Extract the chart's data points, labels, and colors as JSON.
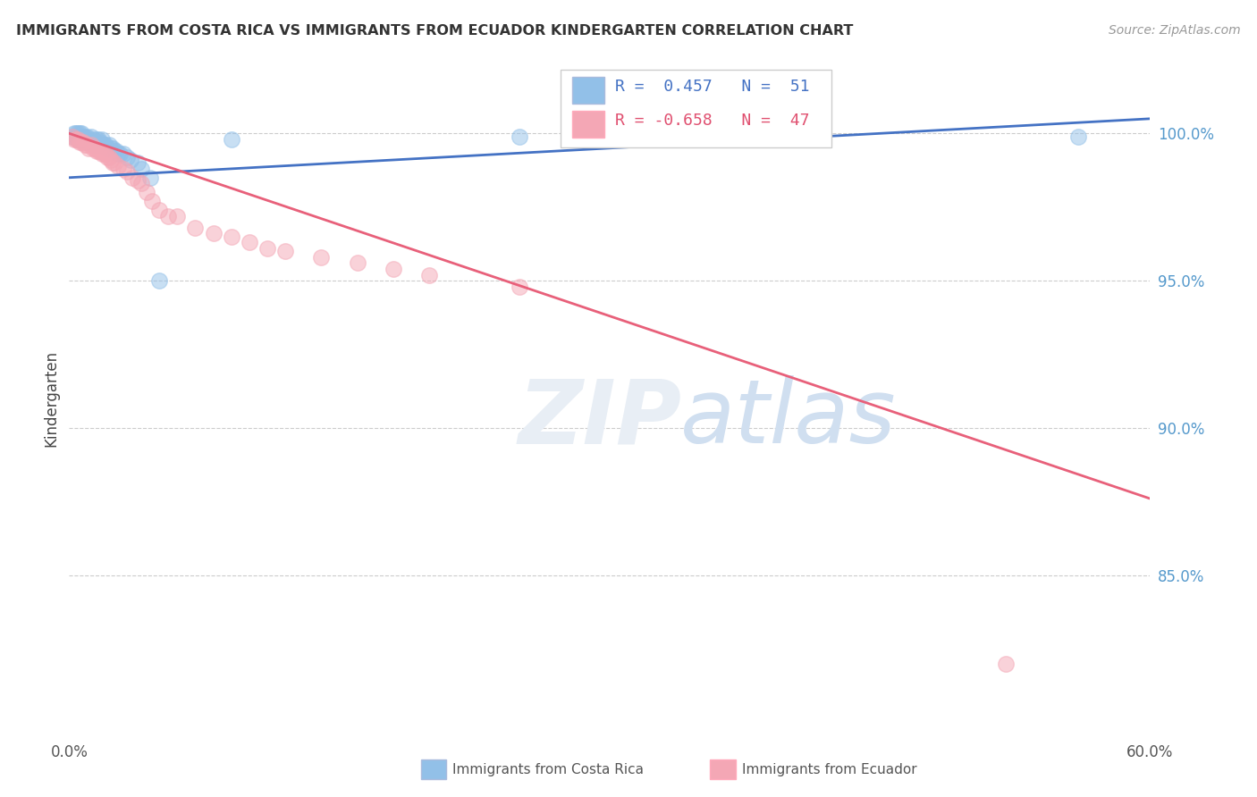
{
  "title": "IMMIGRANTS FROM COSTA RICA VS IMMIGRANTS FROM ECUADOR KINDERGARTEN CORRELATION CHART",
  "source": "Source: ZipAtlas.com",
  "ylabel": "Kindergarten",
  "ytick_labels": [
    "100.0%",
    "95.0%",
    "90.0%",
    "85.0%"
  ],
  "ytick_values": [
    1.0,
    0.95,
    0.9,
    0.85
  ],
  "xlim": [
    0.0,
    0.6
  ],
  "ylim": [
    0.795,
    1.025
  ],
  "legend_cr_R": "0.457",
  "legend_cr_N": "51",
  "legend_ec_R": "-0.658",
  "legend_ec_N": "47",
  "blue_color": "#92C0E8",
  "pink_color": "#F4A7B5",
  "line_blue_color": "#4472C4",
  "line_pink_color": "#E8607A",
  "blue_scatter_x": [
    0.002,
    0.003,
    0.004,
    0.004,
    0.005,
    0.005,
    0.006,
    0.006,
    0.007,
    0.007,
    0.008,
    0.008,
    0.009,
    0.009,
    0.01,
    0.01,
    0.011,
    0.011,
    0.012,
    0.012,
    0.013,
    0.013,
    0.014,
    0.015,
    0.015,
    0.016,
    0.016,
    0.017,
    0.018,
    0.018,
    0.019,
    0.02,
    0.021,
    0.022,
    0.023,
    0.024,
    0.025,
    0.026,
    0.027,
    0.028,
    0.03,
    0.032,
    0.034,
    0.038,
    0.04,
    0.045,
    0.05,
    0.09,
    0.25,
    0.3,
    0.56
  ],
  "blue_scatter_y": [
    0.999,
    1.0,
    0.999,
    1.0,
    0.998,
    1.0,
    0.999,
    1.0,
    0.999,
    1.0,
    0.998,
    0.999,
    0.998,
    0.999,
    0.997,
    0.999,
    0.997,
    0.998,
    0.997,
    0.999,
    0.997,
    0.998,
    0.996,
    0.997,
    0.998,
    0.996,
    0.998,
    0.997,
    0.996,
    0.998,
    0.996,
    0.996,
    0.995,
    0.996,
    0.995,
    0.995,
    0.994,
    0.994,
    0.993,
    0.993,
    0.993,
    0.992,
    0.991,
    0.99,
    0.988,
    0.985,
    0.95,
    0.998,
    0.999,
    0.999,
    0.999
  ],
  "pink_scatter_x": [
    0.002,
    0.003,
    0.004,
    0.005,
    0.006,
    0.007,
    0.008,
    0.009,
    0.01,
    0.011,
    0.012,
    0.013,
    0.014,
    0.015,
    0.016,
    0.017,
    0.018,
    0.019,
    0.02,
    0.021,
    0.022,
    0.023,
    0.024,
    0.025,
    0.027,
    0.03,
    0.032,
    0.035,
    0.038,
    0.04,
    0.043,
    0.046,
    0.05,
    0.055,
    0.06,
    0.07,
    0.08,
    0.09,
    0.1,
    0.11,
    0.12,
    0.14,
    0.16,
    0.18,
    0.2,
    0.25,
    0.52
  ],
  "pink_scatter_y": [
    0.999,
    0.998,
    0.998,
    0.998,
    0.997,
    0.997,
    0.997,
    0.996,
    0.996,
    0.995,
    0.996,
    0.995,
    0.995,
    0.994,
    0.994,
    0.994,
    0.993,
    0.993,
    0.993,
    0.992,
    0.992,
    0.991,
    0.99,
    0.99,
    0.989,
    0.988,
    0.987,
    0.985,
    0.984,
    0.983,
    0.98,
    0.977,
    0.974,
    0.972,
    0.972,
    0.968,
    0.966,
    0.965,
    0.963,
    0.961,
    0.96,
    0.958,
    0.956,
    0.954,
    0.952,
    0.948,
    0.82
  ],
  "blue_line_x": [
    0.0,
    0.6
  ],
  "blue_line_y": [
    0.985,
    1.005
  ],
  "pink_line_x": [
    0.0,
    0.6
  ],
  "pink_line_y": [
    1.0,
    0.876
  ]
}
